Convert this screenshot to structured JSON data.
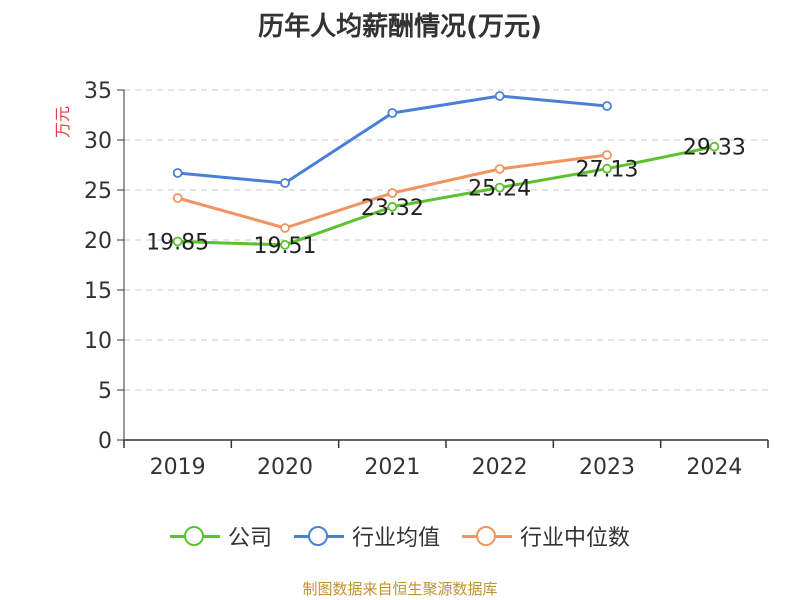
{
  "chart_data": {
    "type": "line",
    "title": "历年人均薪酬情况(万元)",
    "ylabel": "万元",
    "xlabel": "",
    "ylim": [
      0,
      35
    ],
    "yticks": [
      "0",
      "5",
      "10",
      "15",
      "20",
      "25",
      "30",
      "35"
    ],
    "categories": [
      "2019",
      "2020",
      "2021",
      "2022",
      "2023",
      "2024"
    ],
    "series": [
      {
        "name": "公司",
        "color": "#5cc12e",
        "values": [
          19.85,
          19.51,
          23.32,
          25.24,
          27.13,
          29.33
        ],
        "labels": [
          "19.85",
          "19.51",
          "23.32",
          "25.24",
          "27.13",
          "29.33"
        ]
      },
      {
        "name": "行业均值",
        "color": "#4a7fd8",
        "values": [
          26.7,
          25.7,
          32.7,
          34.4,
          33.4,
          null
        ]
      },
      {
        "name": "行业中位数",
        "color": "#f29461",
        "values": [
          24.2,
          21.2,
          24.7,
          27.1,
          28.5,
          null
        ]
      }
    ],
    "grid": true,
    "legend_position": "bottom",
    "source": "制图数据来自恒生聚源数据库"
  }
}
